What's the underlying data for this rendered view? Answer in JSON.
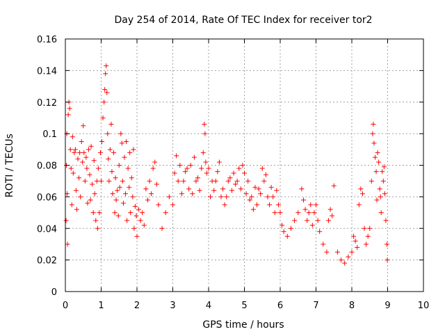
{
  "chart_data": {
    "type": "scatter",
    "title": "Day 254 of 2014, Rate Of TEC Index for receiver tor2",
    "xlabel": "GPS time / hours",
    "ylabel": "ROTI / TECUs",
    "xlim": [
      0,
      10
    ],
    "ylim": [
      0,
      0.16
    ],
    "x_ticks": [
      0,
      1,
      2,
      3,
      4,
      5,
      6,
      7,
      8,
      9,
      10
    ],
    "x_tick_labels": [
      "0",
      "1",
      "2",
      "3",
      "4",
      "5",
      "6",
      "7",
      "8",
      "9",
      "10"
    ],
    "y_ticks": [
      0,
      0.02,
      0.04,
      0.06,
      0.08,
      0.1,
      0.12,
      0.14,
      0.16
    ],
    "y_tick_labels": [
      "0",
      "0.02",
      "0.04",
      "0.06",
      "0.08",
      "0.1",
      "0.12",
      "0.14",
      "0.16"
    ],
    "grid": true,
    "marker": "plus",
    "color": "#ff0000",
    "series": [
      {
        "name": "ROTI",
        "points": [
          [
            0.02,
            0.045
          ],
          [
            0.03,
            0.08
          ],
          [
            0.04,
            0.1
          ],
          [
            0.05,
            0.062
          ],
          [
            0.06,
            0.03
          ],
          [
            0.08,
            0.112
          ],
          [
            0.1,
            0.12
          ],
          [
            0.12,
            0.116
          ],
          [
            0.14,
            0.09
          ],
          [
            0.16,
            0.078
          ],
          [
            0.18,
            0.055
          ],
          [
            0.2,
            0.098
          ],
          [
            0.22,
            0.075
          ],
          [
            0.25,
            0.088
          ],
          [
            0.28,
            0.09
          ],
          [
            0.3,
            0.064
          ],
          [
            0.32,
            0.052
          ],
          [
            0.35,
            0.084
          ],
          [
            0.38,
            0.072
          ],
          [
            0.4,
            0.088
          ],
          [
            0.42,
            0.06
          ],
          [
            0.45,
            0.095
          ],
          [
            0.48,
            0.082
          ],
          [
            0.5,
            0.105
          ],
          [
            0.52,
            0.088
          ],
          [
            0.55,
            0.07
          ],
          [
            0.58,
            0.085
          ],
          [
            0.6,
            0.078
          ],
          [
            0.62,
            0.056
          ],
          [
            0.65,
            0.09
          ],
          [
            0.68,
            0.074
          ],
          [
            0.7,
            0.058
          ],
          [
            0.72,
            0.092
          ],
          [
            0.75,
            0.068
          ],
          [
            0.78,
            0.05
          ],
          [
            0.8,
            0.083
          ],
          [
            0.82,
            0.062
          ],
          [
            0.85,
            0.045
          ],
          [
            0.88,
            0.07
          ],
          [
            0.9,
            0.04
          ],
          [
            0.92,
            0.078
          ],
          [
            0.95,
            0.05
          ],
          [
            0.98,
            0.088
          ],
          [
            1.0,
            0.07
          ],
          [
            1.02,
            0.095
          ],
          [
            1.05,
            0.11
          ],
          [
            1.08,
            0.12
          ],
          [
            1.1,
            0.128
          ],
          [
            1.12,
            0.138
          ],
          [
            1.14,
            0.143
          ],
          [
            1.16,
            0.126
          ],
          [
            1.18,
            0.1
          ],
          [
            1.2,
            0.084
          ],
          [
            1.22,
            0.07
          ],
          [
            1.25,
            0.09
          ],
          [
            1.28,
            0.106
          ],
          [
            1.3,
            0.076
          ],
          [
            1.32,
            0.062
          ],
          [
            1.35,
            0.088
          ],
          [
            1.38,
            0.05
          ],
          [
            1.4,
            0.072
          ],
          [
            1.42,
            0.058
          ],
          [
            1.45,
            0.064
          ],
          [
            1.48,
            0.048
          ],
          [
            1.5,
            0.08
          ],
          [
            1.52,
            0.066
          ],
          [
            1.55,
            0.1
          ],
          [
            1.58,
            0.094
          ],
          [
            1.6,
            0.07
          ],
          [
            1.62,
            0.056
          ],
          [
            1.65,
            0.085
          ],
          [
            1.68,
            0.062
          ],
          [
            1.7,
            0.095
          ],
          [
            1.72,
            0.045
          ],
          [
            1.75,
            0.078
          ],
          [
            1.78,
            0.066
          ],
          [
            1.8,
            0.088
          ],
          [
            1.82,
            0.05
          ],
          [
            1.85,
            0.072
          ],
          [
            1.88,
            0.06
          ],
          [
            1.9,
            0.09
          ],
          [
            1.92,
            0.04
          ],
          [
            1.95,
            0.054
          ],
          [
            1.98,
            0.048
          ],
          [
            2.0,
            0.035
          ],
          [
            2.05,
            0.052
          ],
          [
            2.1,
            0.045
          ],
          [
            2.15,
            0.05
          ],
          [
            2.2,
            0.042
          ],
          [
            2.25,
            0.065
          ],
          [
            2.3,
            0.058
          ],
          [
            2.35,
            0.07
          ],
          [
            2.4,
            0.062
          ],
          [
            2.45,
            0.078
          ],
          [
            2.5,
            0.082
          ],
          [
            2.55,
            0.068
          ],
          [
            2.6,
            0.055
          ],
          [
            2.7,
            0.04
          ],
          [
            2.8,
            0.05
          ],
          [
            2.9,
            0.06
          ],
          [
            3.0,
            0.055
          ],
          [
            3.05,
            0.075
          ],
          [
            3.1,
            0.086
          ],
          [
            3.15,
            0.07
          ],
          [
            3.2,
            0.08
          ],
          [
            3.25,
            0.062
          ],
          [
            3.3,
            0.07
          ],
          [
            3.35,
            0.076
          ],
          [
            3.4,
            0.078
          ],
          [
            3.45,
            0.065
          ],
          [
            3.5,
            0.08
          ],
          [
            3.55,
            0.062
          ],
          [
            3.6,
            0.085
          ],
          [
            3.65,
            0.07
          ],
          [
            3.7,
            0.072
          ],
          [
            3.75,
            0.064
          ],
          [
            3.8,
            0.078
          ],
          [
            3.85,
            0.088
          ],
          [
            3.88,
            0.106
          ],
          [
            3.9,
            0.1
          ],
          [
            3.92,
            0.082
          ],
          [
            3.95,
            0.075
          ],
          [
            4.0,
            0.078
          ],
          [
            4.05,
            0.06
          ],
          [
            4.1,
            0.07
          ],
          [
            4.15,
            0.064
          ],
          [
            4.2,
            0.07
          ],
          [
            4.25,
            0.076
          ],
          [
            4.3,
            0.082
          ],
          [
            4.35,
            0.06
          ],
          [
            4.4,
            0.065
          ],
          [
            4.45,
            0.055
          ],
          [
            4.5,
            0.06
          ],
          [
            4.55,
            0.07
          ],
          [
            4.6,
            0.072
          ],
          [
            4.65,
            0.064
          ],
          [
            4.7,
            0.075
          ],
          [
            4.75,
            0.068
          ],
          [
            4.8,
            0.07
          ],
          [
            4.85,
            0.078
          ],
          [
            4.9,
            0.065
          ],
          [
            4.95,
            0.08
          ],
          [
            5.0,
            0.075
          ],
          [
            5.05,
            0.062
          ],
          [
            5.1,
            0.07
          ],
          [
            5.15,
            0.058
          ],
          [
            5.2,
            0.06
          ],
          [
            5.25,
            0.052
          ],
          [
            5.3,
            0.066
          ],
          [
            5.35,
            0.055
          ],
          [
            5.4,
            0.065
          ],
          [
            5.45,
            0.062
          ],
          [
            5.5,
            0.078
          ],
          [
            5.55,
            0.07
          ],
          [
            5.6,
            0.074
          ],
          [
            5.65,
            0.06
          ],
          [
            5.7,
            0.055
          ],
          [
            5.75,
            0.066
          ],
          [
            5.8,
            0.06
          ],
          [
            5.85,
            0.05
          ],
          [
            5.9,
            0.064
          ],
          [
            5.95,
            0.055
          ],
          [
            6.0,
            0.05
          ],
          [
            6.05,
            0.042
          ],
          [
            6.1,
            0.038
          ],
          [
            6.2,
            0.035
          ],
          [
            6.3,
            0.04
          ],
          [
            6.4,
            0.045
          ],
          [
            6.5,
            0.05
          ],
          [
            6.6,
            0.065
          ],
          [
            6.65,
            0.058
          ],
          [
            6.7,
            0.052
          ],
          [
            6.75,
            0.045
          ],
          [
            6.8,
            0.05
          ],
          [
            6.85,
            0.055
          ],
          [
            6.9,
            0.042
          ],
          [
            6.95,
            0.05
          ],
          [
            7.0,
            0.055
          ],
          [
            7.05,
            0.045
          ],
          [
            7.1,
            0.038
          ],
          [
            7.2,
            0.03
          ],
          [
            7.3,
            0.025
          ],
          [
            7.35,
            0.045
          ],
          [
            7.4,
            0.052
          ],
          [
            7.45,
            0.048
          ],
          [
            7.5,
            0.067
          ],
          [
            7.6,
            0.025
          ],
          [
            7.7,
            0.02
          ],
          [
            7.8,
            0.018
          ],
          [
            7.9,
            0.022
          ],
          [
            8.0,
            0.025
          ],
          [
            8.05,
            0.035
          ],
          [
            8.1,
            0.032
          ],
          [
            8.15,
            0.028
          ],
          [
            8.2,
            0.055
          ],
          [
            8.25,
            0.065
          ],
          [
            8.3,
            0.062
          ],
          [
            8.35,
            0.04
          ],
          [
            8.4,
            0.03
          ],
          [
            8.45,
            0.035
          ],
          [
            8.5,
            0.04
          ],
          [
            8.55,
            0.07
          ],
          [
            8.58,
            0.1
          ],
          [
            8.6,
            0.106
          ],
          [
            8.62,
            0.094
          ],
          [
            8.65,
            0.085
          ],
          [
            8.68,
            0.076
          ],
          [
            8.7,
            0.058
          ],
          [
            8.72,
            0.088
          ],
          [
            8.75,
            0.082
          ],
          [
            8.78,
            0.065
          ],
          [
            8.8,
            0.06
          ],
          [
            8.82,
            0.05
          ],
          [
            8.85,
            0.076
          ],
          [
            8.88,
            0.07
          ],
          [
            8.9,
            0.079
          ],
          [
            8.92,
            0.062
          ],
          [
            8.95,
            0.045
          ],
          [
            8.98,
            0.03
          ],
          [
            8.99,
            0.02
          ]
        ]
      }
    ]
  }
}
